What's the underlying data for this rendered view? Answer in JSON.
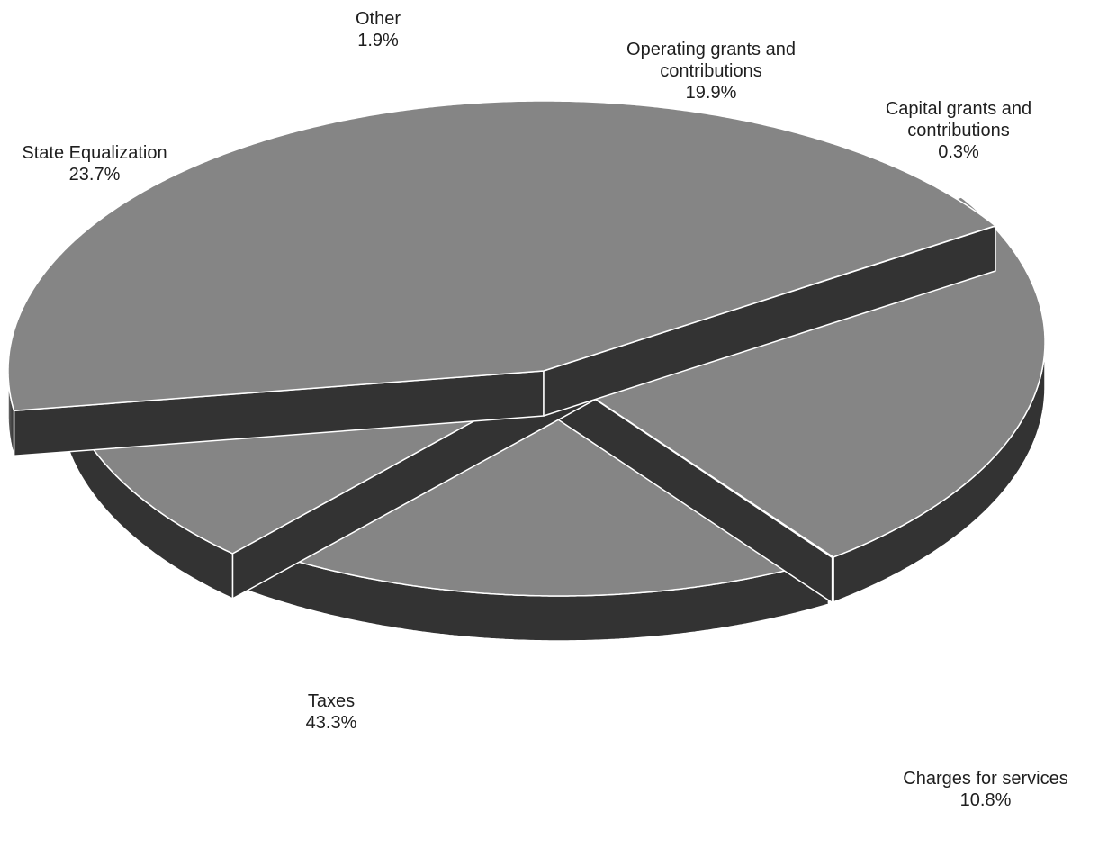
{
  "chart_data": {
    "type": "pie",
    "style": "3d-exploded",
    "slices": [
      {
        "label": [
          "Taxes"
        ],
        "percent": "43.3%",
        "value": 43.3
      },
      {
        "label": [
          "State Equalization"
        ],
        "percent": "23.7%",
        "value": 23.7
      },
      {
        "label": [
          "Other"
        ],
        "percent": "1.9%",
        "value": 1.9
      },
      {
        "label": [
          "Operating grants and",
          "contributions"
        ],
        "percent": "19.9%",
        "value": 19.9
      },
      {
        "label": [
          "Capital grants and",
          "contributions"
        ],
        "percent": "0.3%",
        "value": 0.3
      },
      {
        "label": [
          "Charges for services"
        ],
        "percent": "10.8%",
        "value": 10.8
      }
    ],
    "colors": {
      "top": "#858585",
      "side_dark": "#333333",
      "outline": "#ffffff"
    }
  }
}
